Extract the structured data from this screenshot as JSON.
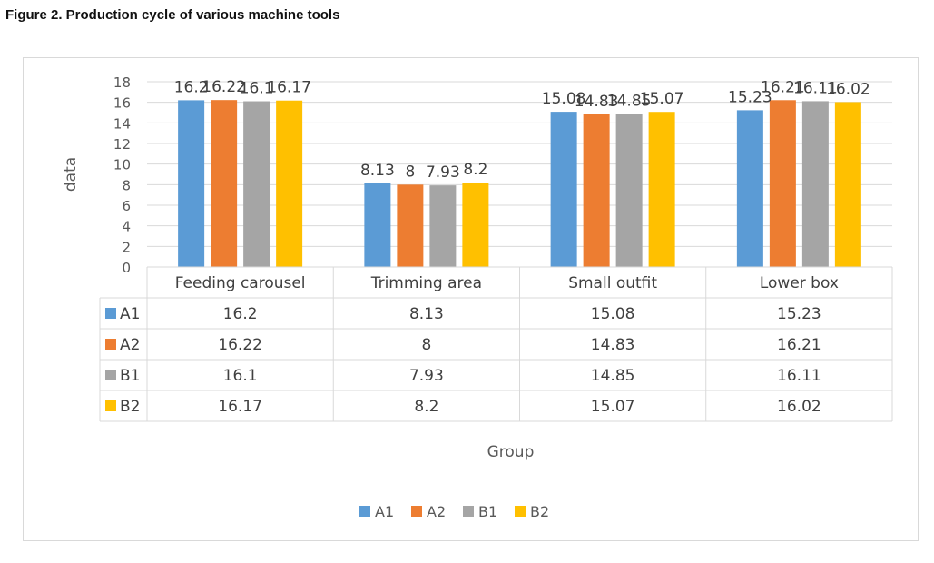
{
  "figure": {
    "title": "Figure 2. Production cycle of various machine tools"
  },
  "chart_data": {
    "type": "bar",
    "title": "",
    "xlabel": "Group",
    "ylabel": "data",
    "ylim": [
      0,
      18
    ],
    "yticks": [
      0,
      2,
      4,
      6,
      8,
      10,
      12,
      14,
      16,
      18
    ],
    "categories": [
      "Feeding carousel",
      "Trimming area",
      "Small outfit",
      "Lower box"
    ],
    "series": [
      {
        "name": "A1",
        "color": "#5b9bd5",
        "values": [
          16.2,
          8.13,
          15.08,
          15.23
        ]
      },
      {
        "name": "A2",
        "color": "#ed7d31",
        "values": [
          16.22,
          8,
          14.83,
          16.21
        ]
      },
      {
        "name": "B1",
        "color": "#a5a5a5",
        "values": [
          16.1,
          7.93,
          14.85,
          16.11
        ]
      },
      {
        "name": "B2",
        "color": "#ffc000",
        "values": [
          16.17,
          8.2,
          15.07,
          16.02
        ]
      }
    ],
    "grid": true,
    "data_table": true,
    "legend_position": "bottom"
  }
}
